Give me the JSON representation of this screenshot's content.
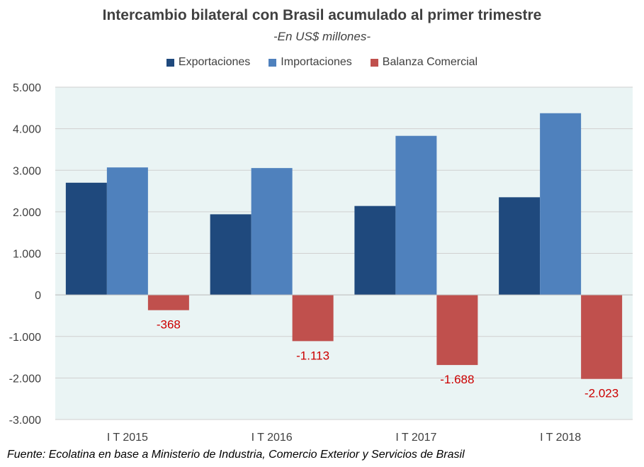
{
  "chart_data": {
    "type": "bar",
    "title": "Intercambio bilateral con Brasil acumulado al primer trimestre",
    "subtitle": "-En US$ millones-",
    "categories": [
      "I T 2015",
      "I T 2016",
      "I T 2017",
      "I T 2018"
    ],
    "series": [
      {
        "name": "Exportaciones",
        "color": "#1f497d",
        "values": [
          2700,
          1940,
          2140,
          2350
        ]
      },
      {
        "name": "Importaciones",
        "color": "#4f81bd",
        "values": [
          3068,
          3053,
          3828,
          4373
        ]
      },
      {
        "name": "Balanza Comercial",
        "color": "#c0504d",
        "values": [
          -368,
          -1113,
          -1688,
          -2023
        ]
      }
    ],
    "data_labels": {
      "series": "Balanza Comercial",
      "texts": [
        "-368",
        "-1.113",
        "-1.688",
        "-2.023"
      ],
      "color": "#cc0000"
    },
    "y_tick_labels": [
      "5.000",
      "4.000",
      "3.000",
      "2.000",
      "1.000",
      "0",
      "-1.000",
      "-2.000",
      "-3.000"
    ],
    "ylim": [
      -3000,
      5000
    ],
    "y_ticks": [
      5000,
      4000,
      3000,
      2000,
      1000,
      0,
      -1000,
      -2000,
      -3000
    ],
    "grid": true,
    "plot_background": "#eaf4f4",
    "legend_position": "top",
    "xlabel": "",
    "ylabel": ""
  },
  "source_note": "Fuente: Ecolatina en base a Ministerio de Industria, Comercio Exterior y Servicios de Brasil"
}
